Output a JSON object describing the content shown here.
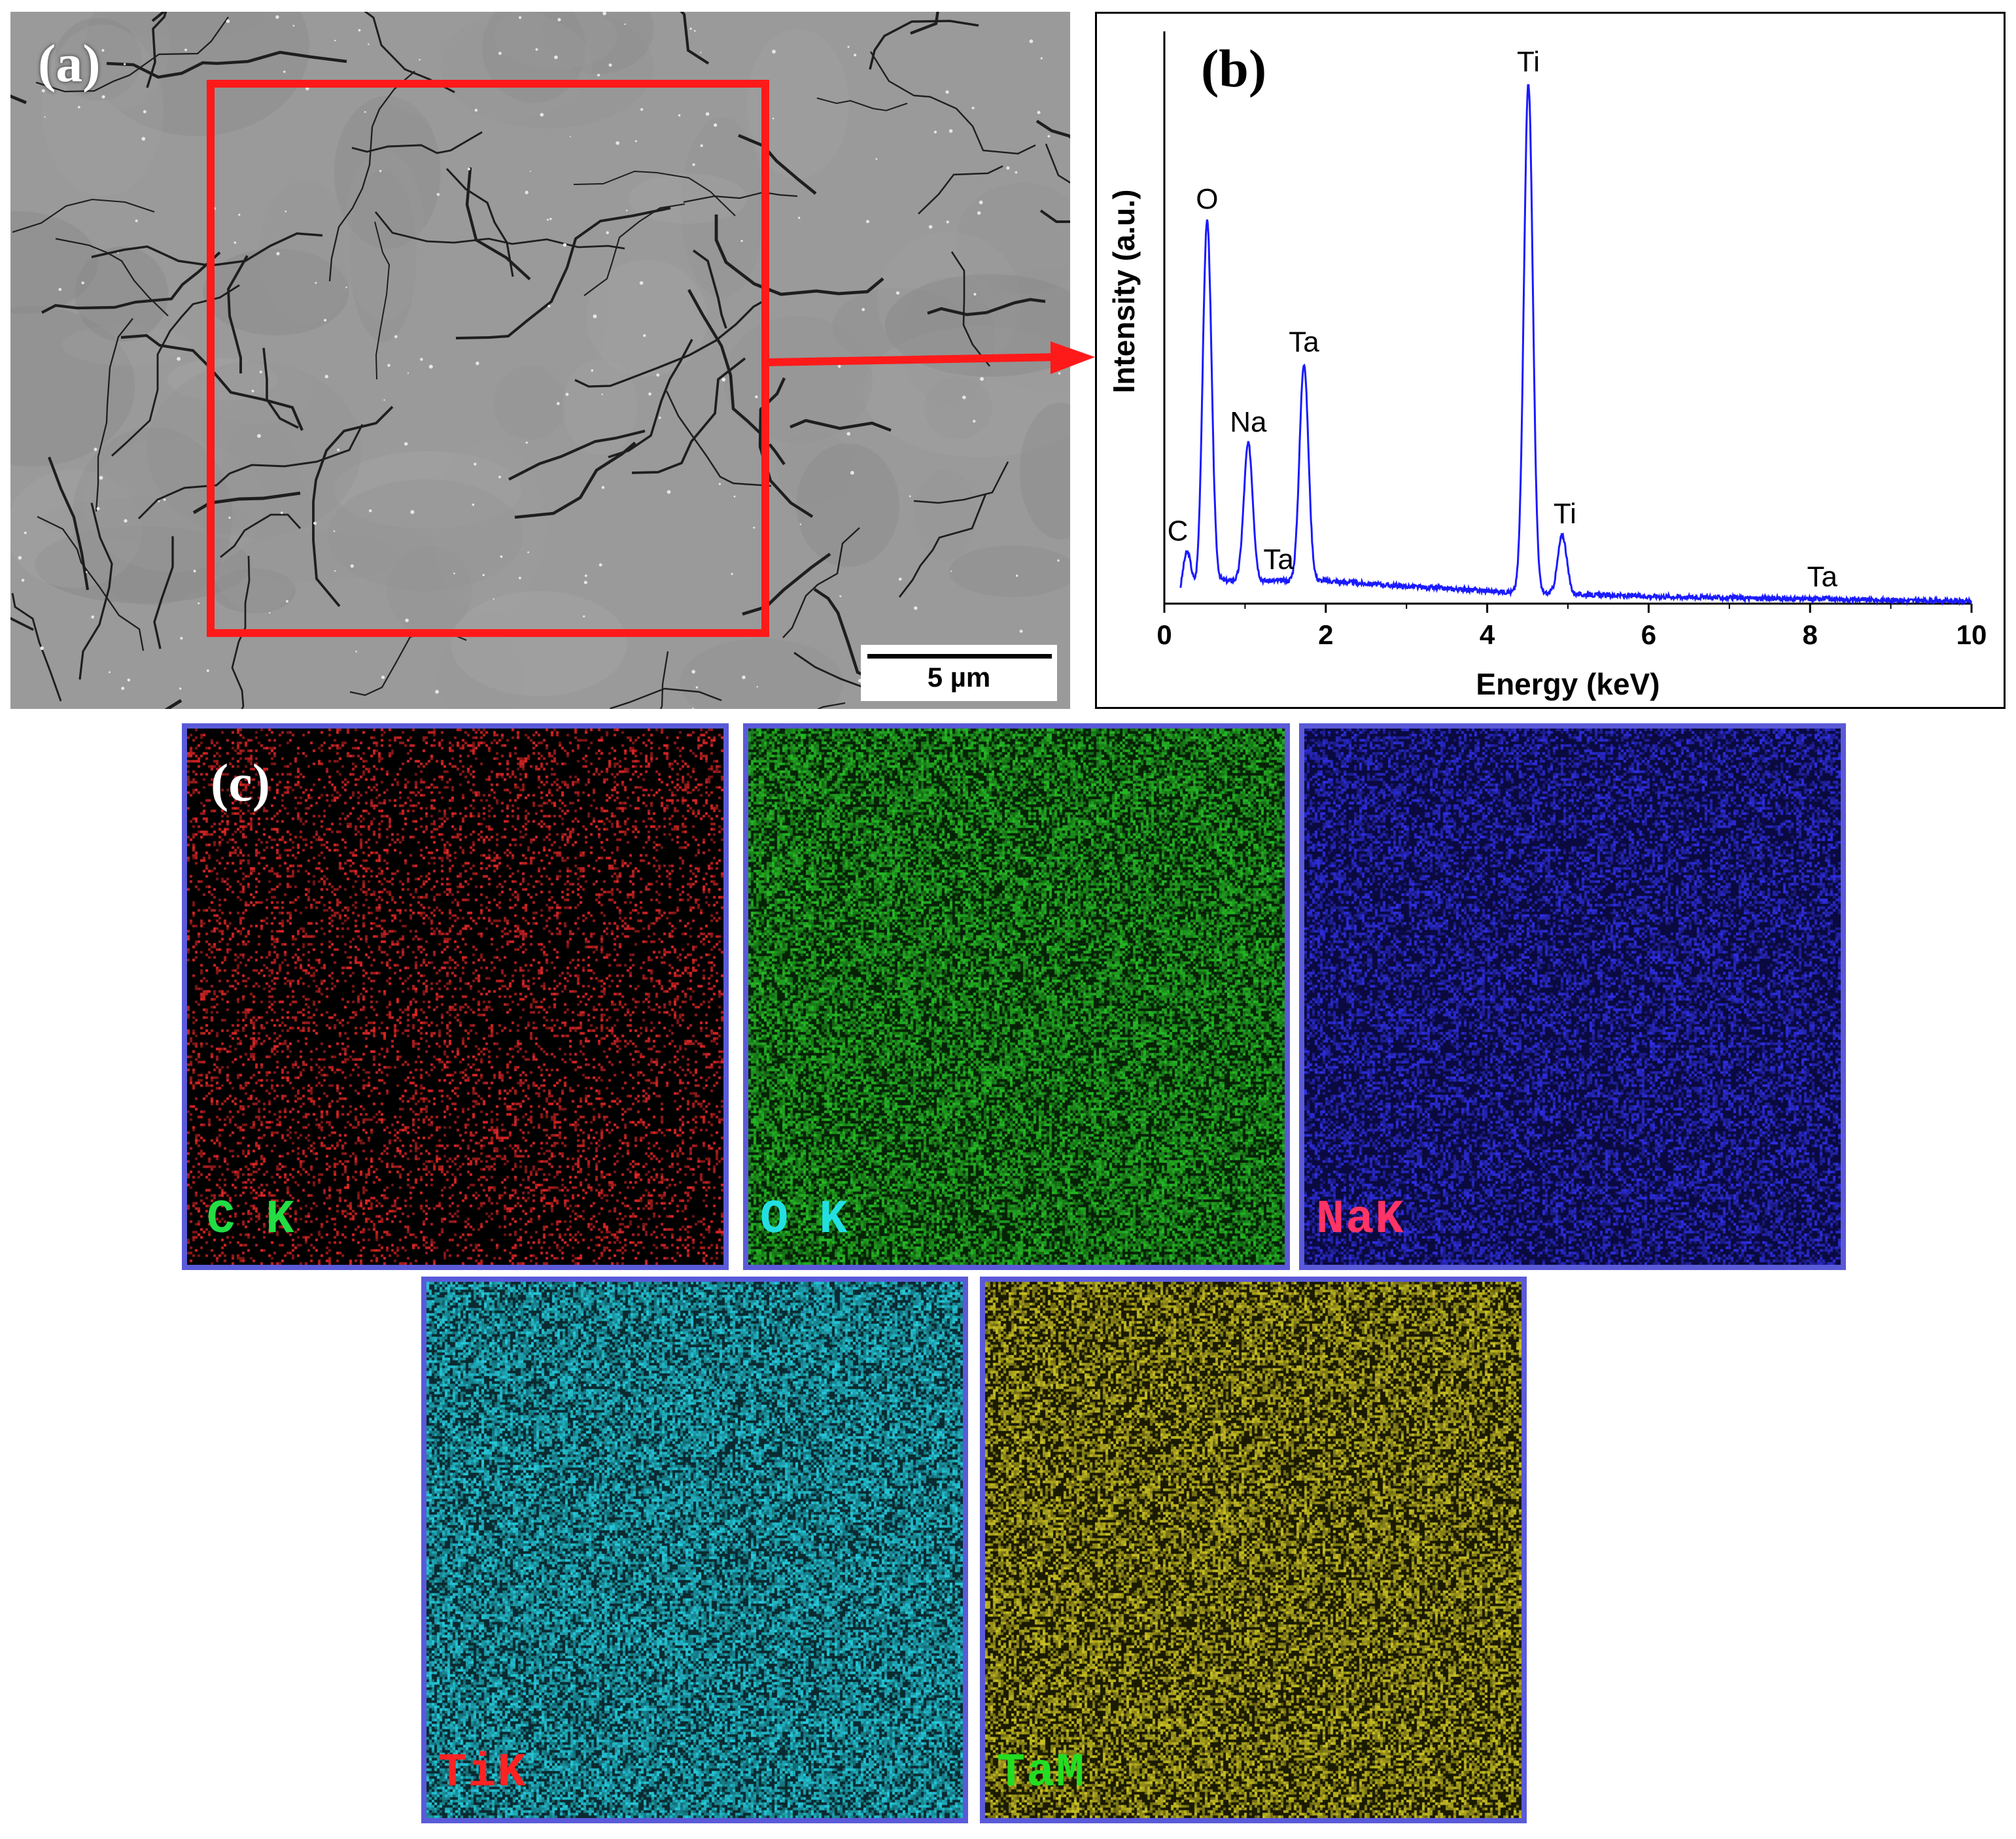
{
  "panels": {
    "a_label": "(a)",
    "b_label": "(b)",
    "c_label": "(c)"
  },
  "sem": {
    "scale_bar": "5 µm"
  },
  "arrow_color": "#ff1a1a",
  "chart_data": {
    "type": "line",
    "title": "",
    "xlabel": "Energy (keV)",
    "ylabel": "Intensity (a.u.)",
    "xlim": [
      0,
      10
    ],
    "ylim": [
      0,
      100
    ],
    "xticks": [
      "0",
      "2",
      "4",
      "6",
      "8",
      "10"
    ],
    "grid": false,
    "series_color": "#1a1aff",
    "peaks": [
      {
        "label": "C",
        "x": 0.28,
        "y": 9
      },
      {
        "label": "O",
        "x": 0.53,
        "y": 67
      },
      {
        "label": "Na",
        "x": 1.04,
        "y": 28
      },
      {
        "label": "Ta",
        "x": 1.35,
        "y": 4
      },
      {
        "label": "Ta",
        "x": 1.73,
        "y": 42
      },
      {
        "label": "Ti",
        "x": 4.51,
        "y": 91
      },
      {
        "label": "Ti",
        "x": 4.93,
        "y": 12
      },
      {
        "label": "Ta",
        "x": 8.15,
        "y": 1
      }
    ],
    "background": [
      {
        "x": 0.2,
        "y": 0
      },
      {
        "x": 0.7,
        "y": 4
      },
      {
        "x": 2.0,
        "y": 4
      },
      {
        "x": 3.0,
        "y": 3
      },
      {
        "x": 4.3,
        "y": 2
      },
      {
        "x": 5.3,
        "y": 1.5
      },
      {
        "x": 7.0,
        "y": 1
      },
      {
        "x": 10.0,
        "y": 0.4
      }
    ]
  },
  "maps": [
    {
      "label": "C  K",
      "color": "#cc2222",
      "base": "#000000",
      "density": 0.18
    },
    {
      "label": "O  K",
      "color": "#22aa22",
      "base": "#052205",
      "density": 0.6
    },
    {
      "label": "NaK",
      "color": "#2a2ad0",
      "base": "#0a0a40",
      "density": 0.45
    },
    {
      "label": "TiK",
      "color": "#22b8c8",
      "base": "#0a2a30",
      "density": 0.65
    },
    {
      "label": "TaM",
      "color": "#b8b020",
      "base": "#1a1a00",
      "density": 0.55
    }
  ]
}
